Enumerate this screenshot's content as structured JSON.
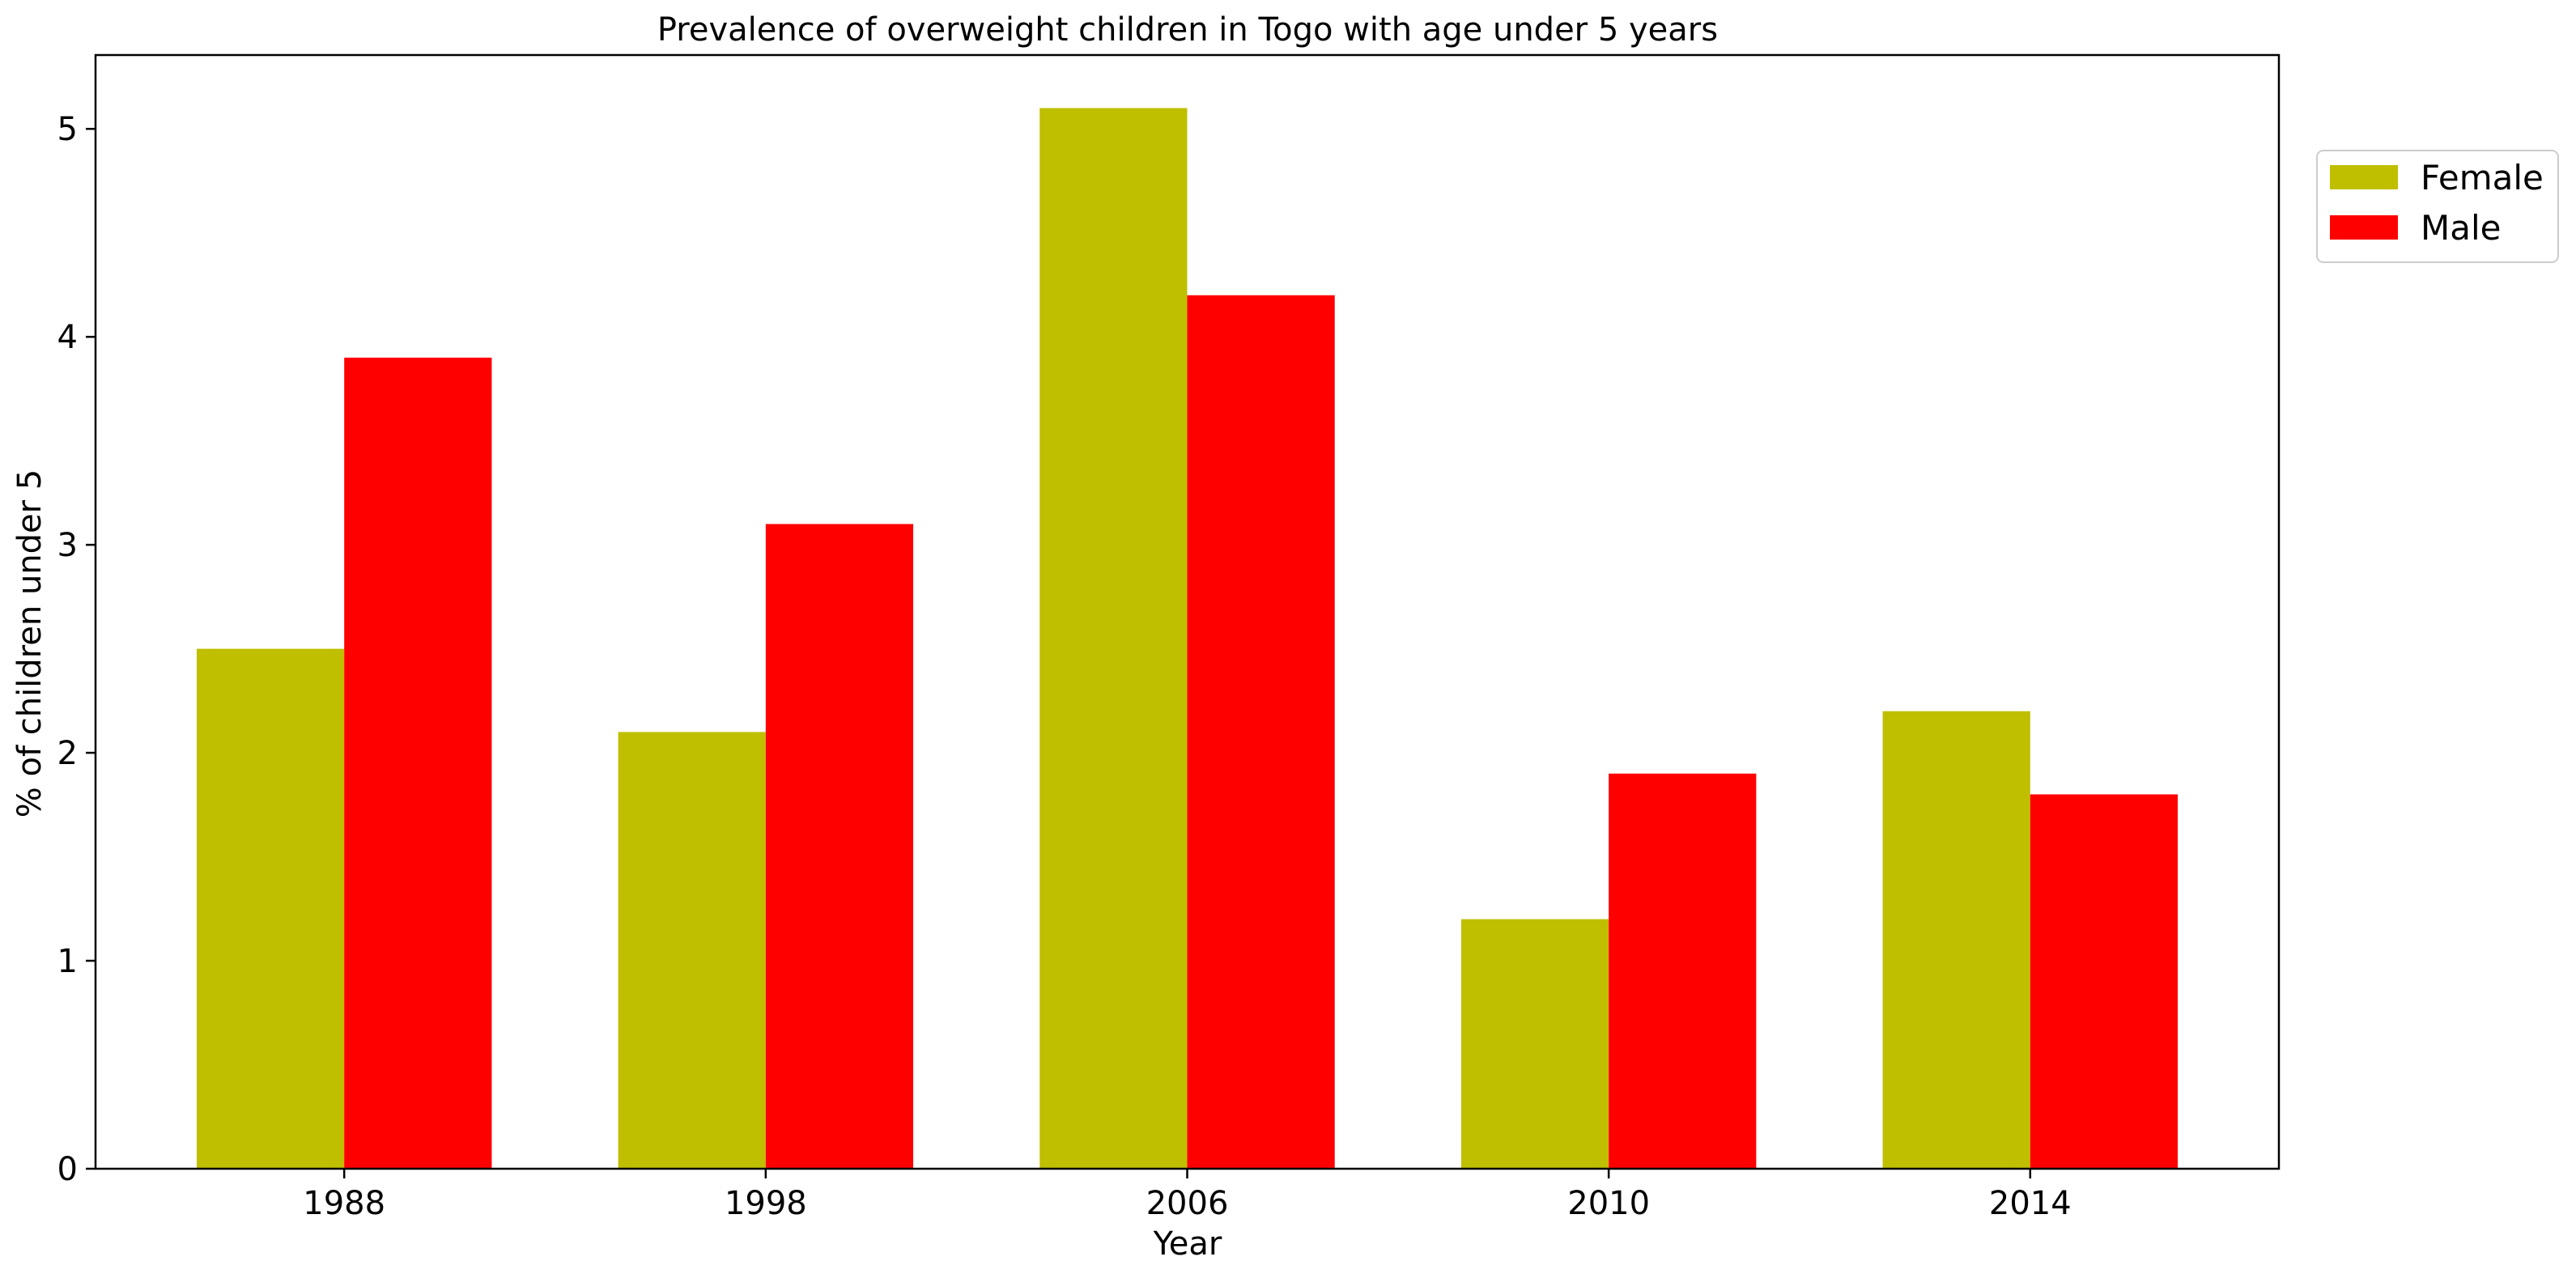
{
  "chart_data": {
    "type": "bar",
    "title": "Prevalence of overweight children in Togo with age under 5 years",
    "xlabel": "Year",
    "ylabel": "% of children under 5",
    "categories": [
      "1988",
      "1998",
      "2006",
      "2010",
      "2014"
    ],
    "series": [
      {
        "name": "Female",
        "color": "#bfbf00",
        "values": [
          2.5,
          2.1,
          5.1,
          1.2,
          2.2
        ]
      },
      {
        "name": "Male",
        "color": "#ff0000",
        "values": [
          3.9,
          3.1,
          4.2,
          1.9,
          1.8
        ]
      }
    ],
    "ylim": [
      0,
      5.355
    ],
    "yticks": [
      0,
      1,
      2,
      3,
      4,
      5
    ],
    "grid": false,
    "legend_position": "top-right outside"
  }
}
